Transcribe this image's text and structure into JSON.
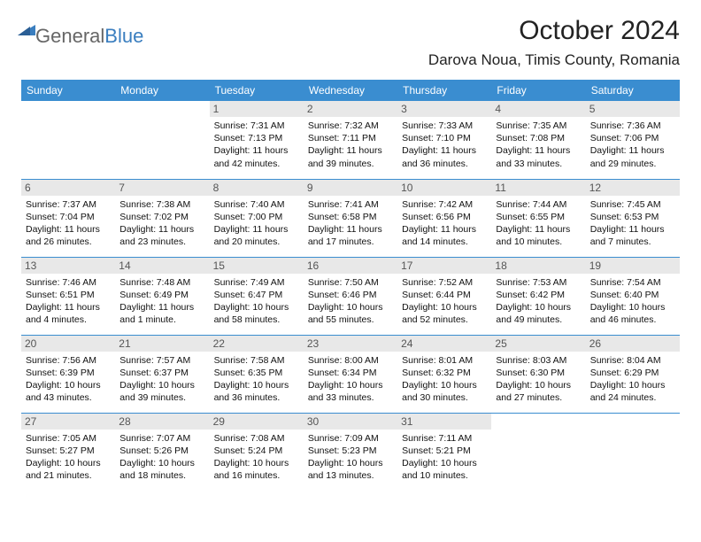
{
  "logo": {
    "general": "General",
    "blue": "Blue"
  },
  "title": "October 2024",
  "location": "Darova Noua, Timis County, Romania",
  "colors": {
    "header_bg": "#3a8dd0",
    "header_fg": "#ffffff",
    "daynum_bg": "#e8e8e8",
    "rule": "#3a8dd0"
  },
  "day_headers": [
    "Sunday",
    "Monday",
    "Tuesday",
    "Wednesday",
    "Thursday",
    "Friday",
    "Saturday"
  ],
  "weeks": [
    [
      null,
      null,
      {
        "n": "1",
        "sunrise": "7:31 AM",
        "sunset": "7:13 PM",
        "daylight": "11 hours and 42 minutes."
      },
      {
        "n": "2",
        "sunrise": "7:32 AM",
        "sunset": "7:11 PM",
        "daylight": "11 hours and 39 minutes."
      },
      {
        "n": "3",
        "sunrise": "7:33 AM",
        "sunset": "7:10 PM",
        "daylight": "11 hours and 36 minutes."
      },
      {
        "n": "4",
        "sunrise": "7:35 AM",
        "sunset": "7:08 PM",
        "daylight": "11 hours and 33 minutes."
      },
      {
        "n": "5",
        "sunrise": "7:36 AM",
        "sunset": "7:06 PM",
        "daylight": "11 hours and 29 minutes."
      }
    ],
    [
      {
        "n": "6",
        "sunrise": "7:37 AM",
        "sunset": "7:04 PM",
        "daylight": "11 hours and 26 minutes."
      },
      {
        "n": "7",
        "sunrise": "7:38 AM",
        "sunset": "7:02 PM",
        "daylight": "11 hours and 23 minutes."
      },
      {
        "n": "8",
        "sunrise": "7:40 AM",
        "sunset": "7:00 PM",
        "daylight": "11 hours and 20 minutes."
      },
      {
        "n": "9",
        "sunrise": "7:41 AM",
        "sunset": "6:58 PM",
        "daylight": "11 hours and 17 minutes."
      },
      {
        "n": "10",
        "sunrise": "7:42 AM",
        "sunset": "6:56 PM",
        "daylight": "11 hours and 14 minutes."
      },
      {
        "n": "11",
        "sunrise": "7:44 AM",
        "sunset": "6:55 PM",
        "daylight": "11 hours and 10 minutes."
      },
      {
        "n": "12",
        "sunrise": "7:45 AM",
        "sunset": "6:53 PM",
        "daylight": "11 hours and 7 minutes."
      }
    ],
    [
      {
        "n": "13",
        "sunrise": "7:46 AM",
        "sunset": "6:51 PM",
        "daylight": "11 hours and 4 minutes."
      },
      {
        "n": "14",
        "sunrise": "7:48 AM",
        "sunset": "6:49 PM",
        "daylight": "11 hours and 1 minute."
      },
      {
        "n": "15",
        "sunrise": "7:49 AM",
        "sunset": "6:47 PM",
        "daylight": "10 hours and 58 minutes."
      },
      {
        "n": "16",
        "sunrise": "7:50 AM",
        "sunset": "6:46 PM",
        "daylight": "10 hours and 55 minutes."
      },
      {
        "n": "17",
        "sunrise": "7:52 AM",
        "sunset": "6:44 PM",
        "daylight": "10 hours and 52 minutes."
      },
      {
        "n": "18",
        "sunrise": "7:53 AM",
        "sunset": "6:42 PM",
        "daylight": "10 hours and 49 minutes."
      },
      {
        "n": "19",
        "sunrise": "7:54 AM",
        "sunset": "6:40 PM",
        "daylight": "10 hours and 46 minutes."
      }
    ],
    [
      {
        "n": "20",
        "sunrise": "7:56 AM",
        "sunset": "6:39 PM",
        "daylight": "10 hours and 43 minutes."
      },
      {
        "n": "21",
        "sunrise": "7:57 AM",
        "sunset": "6:37 PM",
        "daylight": "10 hours and 39 minutes."
      },
      {
        "n": "22",
        "sunrise": "7:58 AM",
        "sunset": "6:35 PM",
        "daylight": "10 hours and 36 minutes."
      },
      {
        "n": "23",
        "sunrise": "8:00 AM",
        "sunset": "6:34 PM",
        "daylight": "10 hours and 33 minutes."
      },
      {
        "n": "24",
        "sunrise": "8:01 AM",
        "sunset": "6:32 PM",
        "daylight": "10 hours and 30 minutes."
      },
      {
        "n": "25",
        "sunrise": "8:03 AM",
        "sunset": "6:30 PM",
        "daylight": "10 hours and 27 minutes."
      },
      {
        "n": "26",
        "sunrise": "8:04 AM",
        "sunset": "6:29 PM",
        "daylight": "10 hours and 24 minutes."
      }
    ],
    [
      {
        "n": "27",
        "sunrise": "7:05 AM",
        "sunset": "5:27 PM",
        "daylight": "10 hours and 21 minutes."
      },
      {
        "n": "28",
        "sunrise": "7:07 AM",
        "sunset": "5:26 PM",
        "daylight": "10 hours and 18 minutes."
      },
      {
        "n": "29",
        "sunrise": "7:08 AM",
        "sunset": "5:24 PM",
        "daylight": "10 hours and 16 minutes."
      },
      {
        "n": "30",
        "sunrise": "7:09 AM",
        "sunset": "5:23 PM",
        "daylight": "10 hours and 13 minutes."
      },
      {
        "n": "31",
        "sunrise": "7:11 AM",
        "sunset": "5:21 PM",
        "daylight": "10 hours and 10 minutes."
      },
      null,
      null
    ]
  ]
}
